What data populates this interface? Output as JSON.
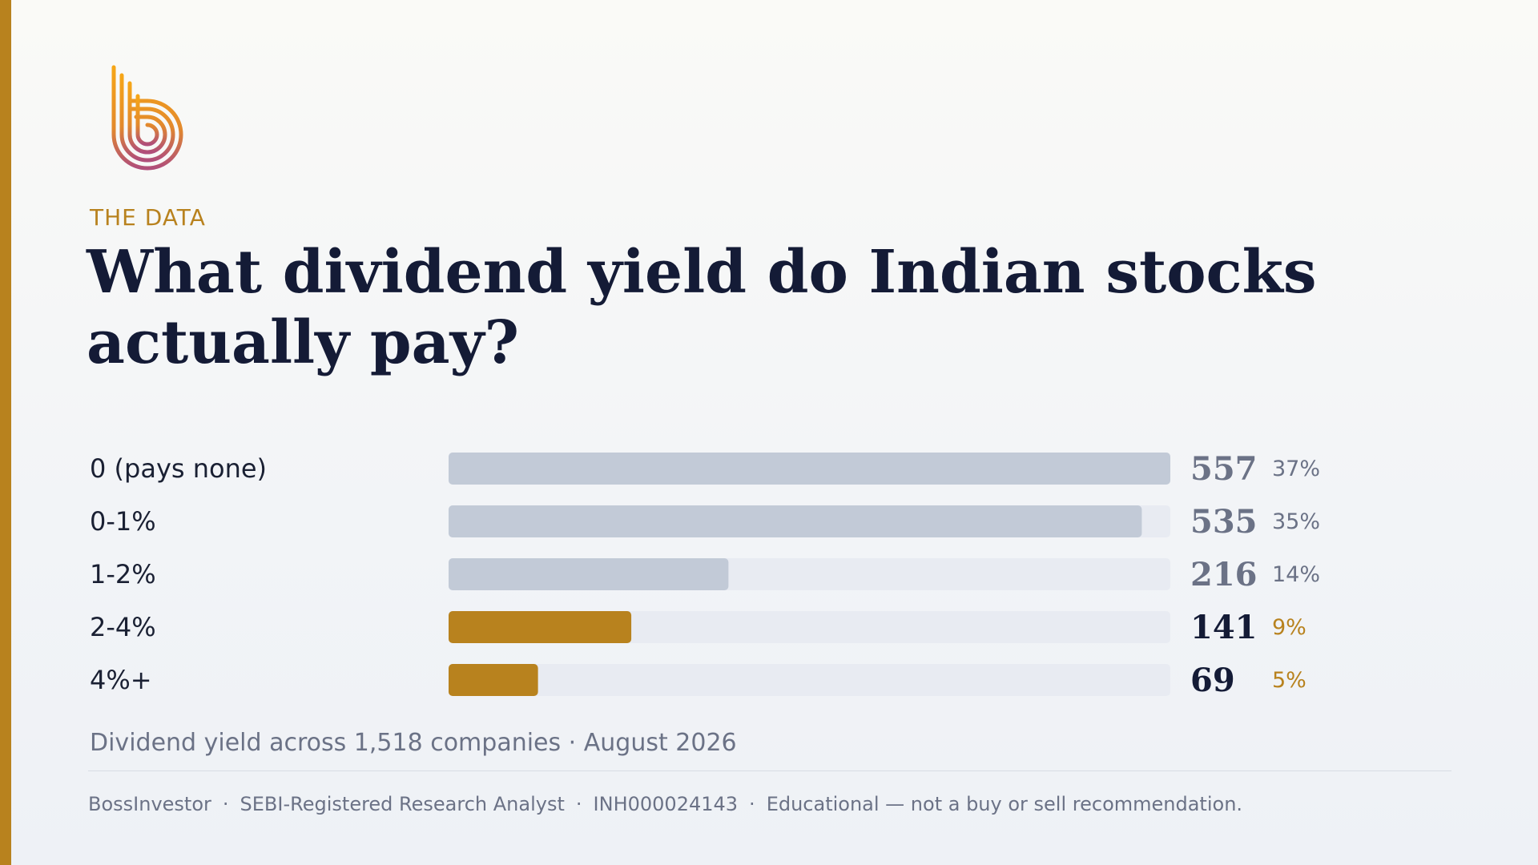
{
  "eyebrow": "THE DATA",
  "title_line1": "What dividend yield do Indian stocks",
  "title_line2": "actually pay?",
  "caption": "Dividend yield across 1,518 companies · August 2026",
  "footer": {
    "brand": "BossInvestor",
    "role": "SEBI-Registered Research Analyst",
    "registration": "INH000024143",
    "disclaimer": "Educational — not a buy or sell recommendation."
  },
  "colors": {
    "accent": "#b8821e",
    "bar_muted": "#c2cad7",
    "track": "#e8ebf2",
    "title": "#141b36",
    "muted_text": "#6b7286"
  },
  "logo_icon": "b-monogram-logo",
  "chart_data": {
    "type": "bar",
    "orientation": "horizontal",
    "categories": [
      "0 (pays none)",
      "0-1%",
      "1-2%",
      "2-4%",
      "4%+"
    ],
    "values": [
      557,
      535,
      216,
      141,
      69
    ],
    "value_labels": [
      "557",
      "535",
      "216",
      "141",
      "69"
    ],
    "percent_labels": [
      "37%",
      "35%",
      "14%",
      "9%",
      "5%"
    ],
    "highlighted": [
      false,
      false,
      false,
      true,
      true
    ],
    "xlim": [
      0,
      557
    ],
    "grid": false
  }
}
